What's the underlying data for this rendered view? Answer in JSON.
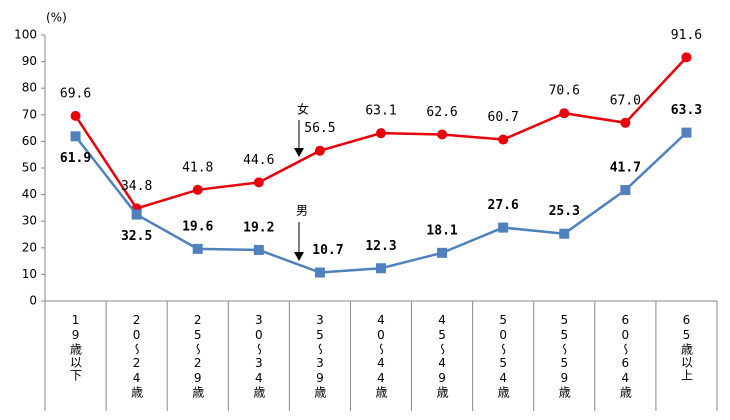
{
  "chart_data": {
    "type": "line",
    "unit_label": "(%)",
    "categories": [
      "19歳以下",
      "20～24歳",
      "25～29歳",
      "30～34歳",
      "35～39歳",
      "40～44歳",
      "45～49歳",
      "50～54歳",
      "55～59歳",
      "60～64歳",
      "65歳以上"
    ],
    "series": [
      {
        "name": "女",
        "color": "#e8000b",
        "marker": "circle",
        "values": [
          69.6,
          34.8,
          41.8,
          44.6,
          56.5,
          63.1,
          62.6,
          60.7,
          70.6,
          67.0,
          91.6
        ],
        "value_labels": [
          "69.6",
          "34.8",
          "41.8",
          "44.6",
          "56.5",
          "63.1",
          "62.6",
          "60.7",
          "70.6",
          "67.0",
          "91.6"
        ]
      },
      {
        "name": "男",
        "color": "#4f81bd",
        "marker": "square",
        "values": [
          61.9,
          32.5,
          19.6,
          19.2,
          10.7,
          12.3,
          18.1,
          27.6,
          25.3,
          41.7,
          63.3
        ],
        "value_labels": [
          "61.9",
          "32.5",
          "19.6",
          "19.2",
          "10.7",
          "12.3",
          "18.1",
          "27.6",
          "25.3",
          "41.7",
          "63.3"
        ]
      }
    ],
    "ylim": [
      0,
      100
    ],
    "yticks": [
      0,
      10,
      20,
      30,
      40,
      50,
      60,
      70,
      80,
      90,
      100
    ],
    "grid": false
  }
}
